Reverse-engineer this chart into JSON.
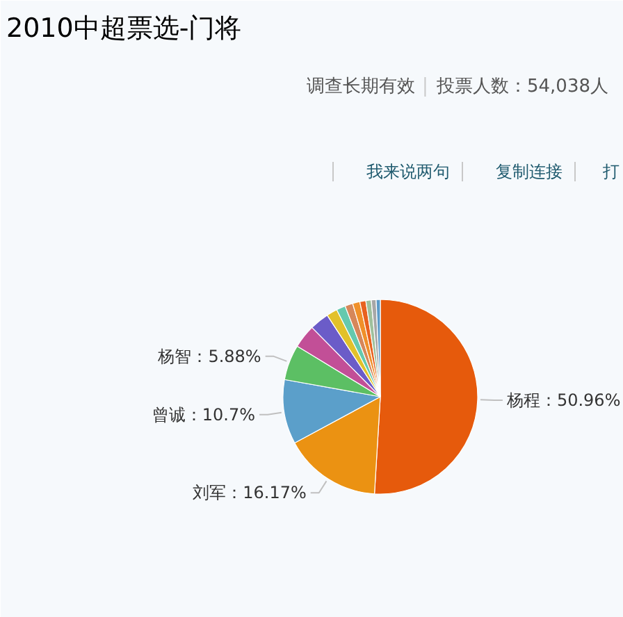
{
  "chart_data": {
    "type": "pie",
    "title": "2010中超票选-门将",
    "subtitle": "调查长期有效",
    "annotations": [
      "投票人数：54,038人",
      "我来说两句",
      "复制连接",
      "打"
    ],
    "categories": [
      "杨程",
      "刘军",
      "曾诚",
      "杨智",
      null,
      null,
      null,
      null,
      null,
      null,
      null,
      null,
      null,
      null
    ],
    "values": [
      50.96,
      16.17,
      10.7,
      5.88,
      3.9,
      3.2,
      1.8,
      1.5,
      1.3,
      1.2,
      1.0,
      0.9,
      0.8,
      0.69
    ],
    "colors": [
      "#e65a0c",
      "#eb9212",
      "#5b9fca",
      "#5cbf64",
      "#c24f97",
      "#6b5cc8",
      "#e2c12a",
      "#65c9ae",
      "#d6875a",
      "#f0902a",
      "#e8611f",
      "#9fc09c",
      "#a7a7a7",
      "#5c9bc8"
    ],
    "value_labels": [
      "50.96%",
      "16.17%",
      "10.7%",
      "5.88%",
      null,
      null,
      null,
      null,
      null,
      null,
      null,
      null,
      null,
      null
    ]
  }
}
